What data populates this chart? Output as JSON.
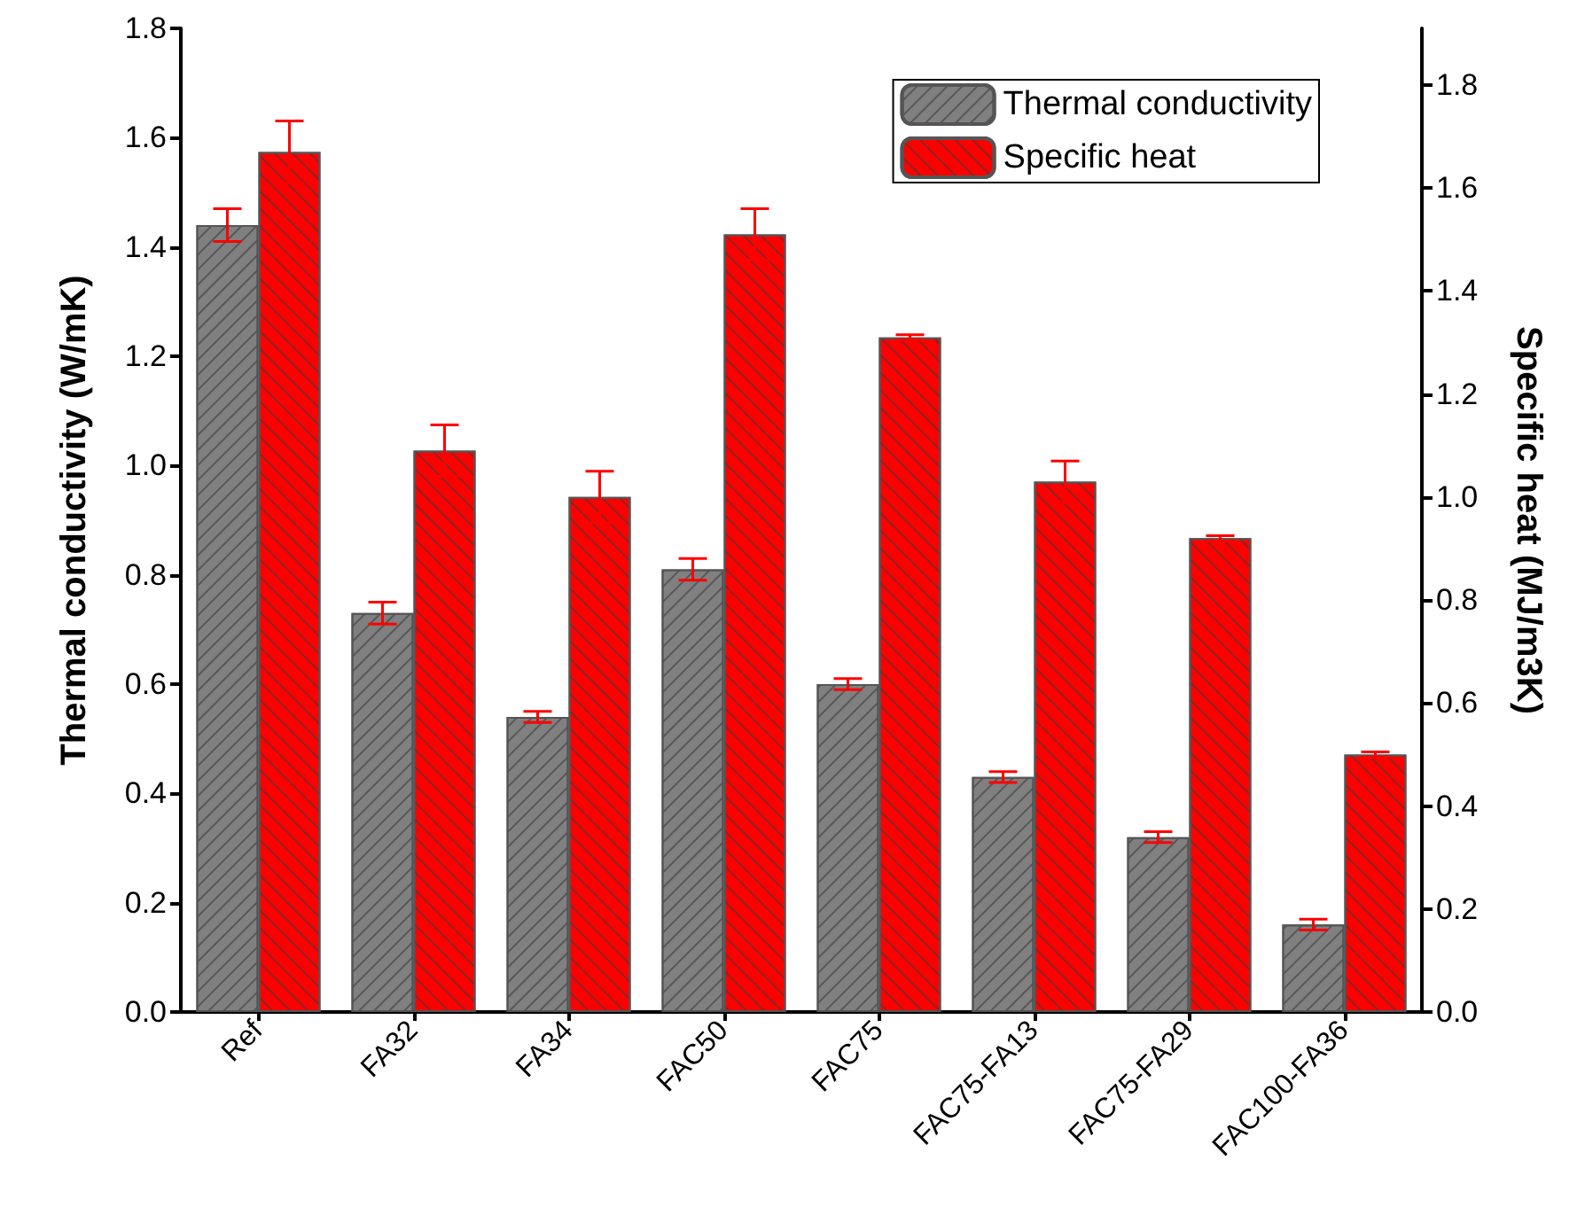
{
  "chart_data": {
    "type": "bar",
    "ylabel": "Thermal conductivity (W/mK)",
    "y2label": "Specific heat (MJ/m3K)",
    "categories": [
      "Ref",
      "FA32",
      "FA34",
      "FAC50",
      "FAC75",
      "FAC75-FA13",
      "FAC75-FA29",
      "FAC100-FA36"
    ],
    "series": [
      {
        "name": "Thermal conductivity",
        "color": "#808080",
        "values": [
          1.44,
          0.73,
          0.54,
          0.81,
          0.6,
          0.43,
          0.32,
          0.16
        ],
        "errors": [
          0.03,
          0.02,
          0.01,
          0.02,
          0.01,
          0.01,
          0.01,
          0.01
        ]
      },
      {
        "name": "Specific heat",
        "color": "#ff0000",
        "axis": "y2",
        "values": [
          1.67,
          1.09,
          1.0,
          1.51,
          1.31,
          1.03,
          0.92,
          0.5
        ],
        "errors": [
          0.06,
          0.05,
          0.05,
          0.05,
          0.005,
          0.04,
          0.005,
          0.005
        ]
      }
    ],
    "ylim": [
      0,
      1.8
    ],
    "yticks": [
      {
        "value": 0,
        "label": "0.0"
      },
      0.2,
      0.4,
      0.6,
      0.8,
      {
        "value": 1,
        "label": "1.0"
      },
      1.2,
      1.4,
      1.6,
      1.8
    ],
    "y2lim": [
      0,
      1.91
    ],
    "y2ticks": [
      {
        "value": 0,
        "label": "0.0"
      },
      0.2,
      0.4,
      0.6,
      0.8,
      {
        "value": 1,
        "label": "1.0"
      },
      1.2,
      1.4,
      1.6,
      1.8
    ],
    "legend": "top right",
    "grid": false
  }
}
